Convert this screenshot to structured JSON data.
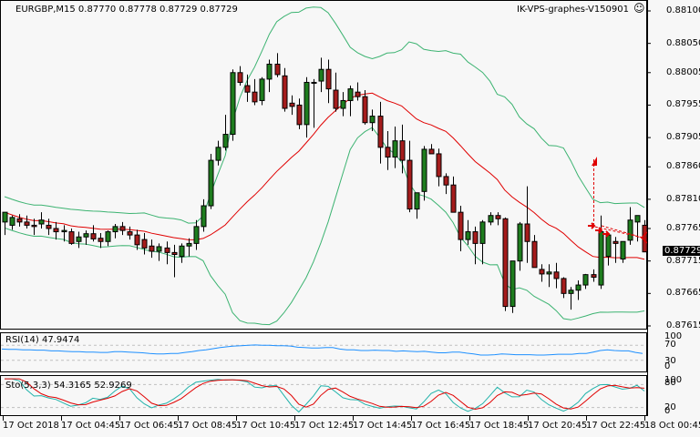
{
  "header": {
    "symbol_info": "EURGBP,M15  0.87770 0.87778 0.87729 0.87729",
    "expert_label": "IK-VPS-graphes-V150901",
    "expert_icon": "smiley-face-icon"
  },
  "colors": {
    "background": "#f7f7f7",
    "bull_candle": "#1e7d1e",
    "bear_candle": "#a51c1c",
    "bollinger": "#3cb371",
    "ma": "#e00000",
    "rsi": "#1e90ff",
    "stoch_main": "#20b2aa",
    "stoch_signal": "#e00000",
    "grid_level": "#c0c0c0"
  },
  "price_axis": {
    "labels": [
      "0.88100",
      "0.88050",
      "0.88005",
      "0.87955",
      "0.87905",
      "0.87860",
      "0.87810",
      "0.87765",
      "0.87715",
      "0.87665",
      "0.87615"
    ],
    "current_price": "0.87729"
  },
  "rsi_panel": {
    "title": "RSI(14) 47.9474",
    "axis_labels": [
      "100",
      "70",
      "30",
      "0"
    ]
  },
  "stoch_panel": {
    "title": "Sto(5,3,3) 54.3165 52.9269",
    "axis_labels": [
      "100",
      "80",
      "20",
      "0"
    ]
  },
  "time_axis": {
    "labels": [
      "17 Oct 2018",
      "17 Oct 04:45",
      "17 Oct 06:45",
      "17 Oct 08:45",
      "17 Oct 10:45",
      "17 Oct 12:45",
      "17 Oct 14:45",
      "17 Oct 16:45",
      "17 Oct 18:45",
      "17 Oct 20:45",
      "17 Oct 22:45",
      "18 Oct 00:45"
    ]
  },
  "chart_data": [
    {
      "type": "candlestick",
      "title": "EURGBP,M15",
      "timeframe": "M15",
      "last_bar": {
        "open": 0.8777,
        "high": 0.87778,
        "low": 0.87729,
        "close": 0.87729
      },
      "ylim": [
        0.87605,
        0.88115
      ],
      "y_ticks": [
        0.881,
        0.8805,
        0.88005,
        0.87955,
        0.87905,
        0.8786,
        0.8781,
        0.87765,
        0.87715,
        0.87665,
        0.87615
      ],
      "x_tick_labels": [
        "17 Oct 2018",
        "17 Oct 04:45",
        "17 Oct 06:45",
        "17 Oct 08:45",
        "17 Oct 10:45",
        "17 Oct 12:45",
        "17 Oct 14:45",
        "17 Oct 16:45",
        "17 Oct 18:45",
        "17 Oct 20:45",
        "17 Oct 22:45",
        "18 Oct 00:45"
      ],
      "overlays": [
        "Bollinger Bands (green)",
        "Moving Average (red)"
      ],
      "candles": [
        [
          0.87775,
          0.87785,
          0.87755,
          0.8779
        ],
        [
          0.8777,
          0.87785,
          0.87763,
          0.87782
        ],
        [
          0.8778,
          0.87787,
          0.87768,
          0.87775
        ],
        [
          0.87775,
          0.87785,
          0.87765,
          0.8777
        ],
        [
          0.8777,
          0.8778,
          0.87755,
          0.87768
        ],
        [
          0.87772,
          0.8779,
          0.87765,
          0.87778
        ],
        [
          0.8777,
          0.8778,
          0.87755,
          0.87765
        ],
        [
          0.87765,
          0.87775,
          0.87748,
          0.8776
        ],
        [
          0.8776,
          0.8777,
          0.87745,
          0.87762
        ],
        [
          0.8776,
          0.87765,
          0.8774,
          0.87742
        ],
        [
          0.87745,
          0.8776,
          0.87735,
          0.87752
        ],
        [
          0.87752,
          0.87762,
          0.8774,
          0.87757
        ],
        [
          0.87757,
          0.8777,
          0.87745,
          0.87749
        ],
        [
          0.8775,
          0.87758,
          0.87735,
          0.87745
        ],
        [
          0.87745,
          0.87762,
          0.87738,
          0.8776
        ],
        [
          0.8776,
          0.87772,
          0.8775,
          0.87768
        ],
        [
          0.87768,
          0.87775,
          0.87755,
          0.87762
        ],
        [
          0.8776,
          0.87768,
          0.87748,
          0.87755
        ],
        [
          0.87755,
          0.87763,
          0.87732,
          0.8774
        ],
        [
          0.87748,
          0.87758,
          0.87725,
          0.87735
        ],
        [
          0.87738,
          0.87748,
          0.8772,
          0.8773
        ],
        [
          0.8773,
          0.87742,
          0.87715,
          0.87737
        ],
        [
          0.87735,
          0.87745,
          0.8771,
          0.87728
        ],
        [
          0.87728,
          0.8774,
          0.8769,
          0.87725
        ],
        [
          0.87722,
          0.87742,
          0.87712,
          0.87738
        ],
        [
          0.87738,
          0.8775,
          0.87722,
          0.87742
        ],
        [
          0.87742,
          0.87778,
          0.87732,
          0.87768
        ],
        [
          0.87768,
          0.8781,
          0.8776,
          0.878
        ],
        [
          0.878,
          0.8788,
          0.87795,
          0.8787
        ],
        [
          0.8787,
          0.879,
          0.87862,
          0.8789
        ],
        [
          0.8789,
          0.8794,
          0.87885,
          0.8791
        ],
        [
          0.8791,
          0.8801,
          0.879,
          0.88005
        ],
        [
          0.88005,
          0.88015,
          0.87985,
          0.8799
        ],
        [
          0.87985,
          0.88002,
          0.8796,
          0.87975
        ],
        [
          0.87975,
          0.87995,
          0.87955,
          0.8796
        ],
        [
          0.87962,
          0.87998,
          0.87955,
          0.87995
        ],
        [
          0.87995,
          0.88025,
          0.87975,
          0.88018
        ],
        [
          0.88018,
          0.88035,
          0.87998,
          0.88002
        ],
        [
          0.88,
          0.88012,
          0.87945,
          0.8795
        ],
        [
          0.87958,
          0.8797,
          0.8794,
          0.87953
        ],
        [
          0.87955,
          0.87965,
          0.87918,
          0.87925
        ],
        [
          0.87925,
          0.87998,
          0.87905,
          0.8799
        ],
        [
          0.8799,
          0.87995,
          0.8792,
          0.8799
        ],
        [
          0.87992,
          0.88028,
          0.87975,
          0.8801
        ],
        [
          0.8801,
          0.88025,
          0.87958,
          0.8798
        ],
        [
          0.87978,
          0.88005,
          0.87945,
          0.8795
        ],
        [
          0.8795,
          0.87975,
          0.87938,
          0.87962
        ],
        [
          0.87962,
          0.87985,
          0.87938,
          0.8798
        ],
        [
          0.87975,
          0.8799,
          0.87962,
          0.87968
        ],
        [
          0.87968,
          0.87978,
          0.87925,
          0.87928
        ],
        [
          0.87928,
          0.87948,
          0.87915,
          0.87938
        ],
        [
          0.87938,
          0.8796,
          0.87865,
          0.8789
        ],
        [
          0.8789,
          0.87915,
          0.87855,
          0.87875
        ],
        [
          0.87875,
          0.87922,
          0.87858,
          0.879
        ],
        [
          0.879,
          0.87925,
          0.8785,
          0.8787
        ],
        [
          0.8787,
          0.879,
          0.8779,
          0.87795
        ],
        [
          0.87795,
          0.8782,
          0.8778,
          0.8782
        ],
        [
          0.87822,
          0.87892,
          0.87808,
          0.87887
        ],
        [
          0.87887,
          0.87895,
          0.8788,
          0.8788
        ],
        [
          0.8788,
          0.87888,
          0.8783,
          0.87845
        ],
        [
          0.87845,
          0.8785,
          0.87818,
          0.87832
        ],
        [
          0.87832,
          0.87845,
          0.8779,
          0.8779
        ],
        [
          0.8779,
          0.878,
          0.8773,
          0.87748
        ],
        [
          0.87748,
          0.87778,
          0.8774,
          0.8776
        ],
        [
          0.8776,
          0.87768,
          0.8771,
          0.87742
        ],
        [
          0.87742,
          0.87778,
          0.8771,
          0.87775
        ],
        [
          0.87775,
          0.8779,
          0.8777,
          0.87785
        ],
        [
          0.87785,
          0.8779,
          0.8777,
          0.8778
        ],
        [
          0.8778,
          0.87782,
          0.87638,
          0.87645
        ],
        [
          0.87645,
          0.87715,
          0.87635,
          0.87715
        ],
        [
          0.87715,
          0.87775,
          0.877,
          0.87772
        ],
        [
          0.87772,
          0.8783,
          0.87712,
          0.87745
        ],
        [
          0.87745,
          0.87755,
          0.87705,
          0.87705
        ],
        [
          0.87702,
          0.8771,
          0.87683,
          0.87695
        ],
        [
          0.87695,
          0.8771,
          0.87675,
          0.87698
        ],
        [
          0.87698,
          0.87712,
          0.87673,
          0.87688
        ],
        [
          0.87688,
          0.8769,
          0.87658,
          0.87665
        ],
        [
          0.87665,
          0.87675,
          0.8764,
          0.8767
        ],
        [
          0.8767,
          0.87685,
          0.87655,
          0.87678
        ],
        [
          0.87678,
          0.87695,
          0.87672,
          0.87694
        ],
        [
          0.87694,
          0.87702,
          0.87683,
          0.8769
        ],
        [
          0.87678,
          0.87785,
          0.87672,
          0.8776
        ],
        [
          0.87722,
          0.87745,
          0.87708,
          0.87755
        ],
        [
          0.87745,
          0.87752,
          0.87712,
          0.87742
        ],
        [
          0.87718,
          0.87745,
          0.87712,
          0.87745
        ],
        [
          0.87747,
          0.87798,
          0.8774,
          0.87778
        ],
        [
          0.87775,
          0.87785,
          0.87745,
          0.87785
        ],
        [
          0.8777,
          0.87778,
          0.87729,
          0.87729
        ]
      ],
      "candle_format": [
        "open",
        "high",
        "low",
        "close"
      ]
    },
    {
      "type": "line",
      "title": "RSI(14) 47.9474",
      "ylim": [
        0,
        100
      ],
      "levels": [
        70,
        30
      ],
      "current": 47.9474,
      "values": [
        60,
        59,
        59,
        58,
        58,
        57,
        57,
        55,
        55,
        54,
        53,
        53,
        52,
        52,
        51,
        51,
        53,
        53,
        52,
        51,
        50,
        48,
        47,
        47,
        48,
        48,
        51,
        53,
        56,
        58,
        61,
        64,
        66,
        68,
        69,
        70,
        71,
        70,
        70,
        69,
        69,
        68,
        65,
        64,
        63,
        63,
        64,
        64,
        60,
        58,
        58,
        56,
        56,
        57,
        56,
        56,
        54,
        55,
        54,
        53,
        54,
        52,
        50,
        50,
        52,
        52,
        49,
        47,
        44,
        44,
        45,
        47,
        46,
        45,
        45,
        45,
        44,
        44,
        45,
        46,
        46,
        46,
        48,
        48,
        52,
        56,
        58,
        56,
        55,
        55,
        51,
        48
      ]
    },
    {
      "type": "line",
      "title": "Sto(5,3,3) 54.3165 52.9269",
      "ylim": [
        0,
        100
      ],
      "levels": [
        80,
        20
      ],
      "series": [
        {
          "name": "Main",
          "current": 54.3165
        },
        {
          "name": "Signal",
          "current": 52.9269
        }
      ]
    }
  ]
}
